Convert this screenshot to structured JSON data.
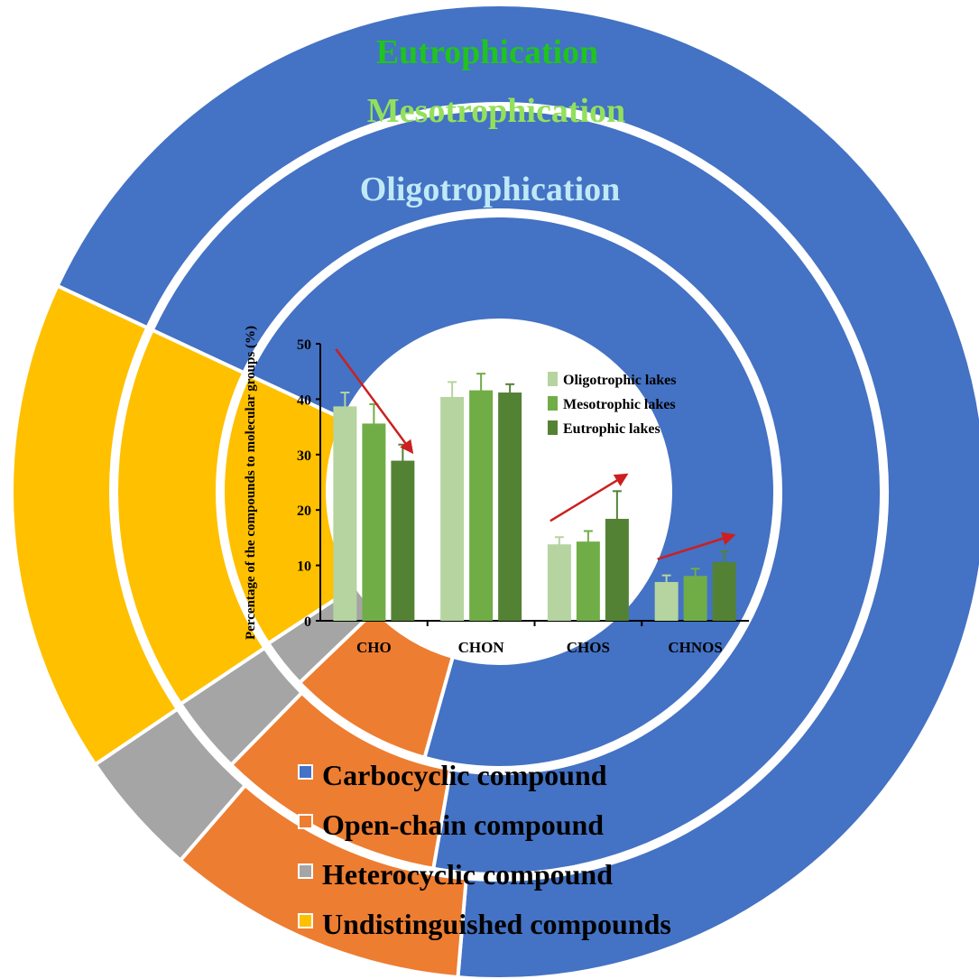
{
  "chart_data": [
    {
      "type": "pie",
      "subtype": "nested-donut",
      "colors": {
        "Carbocyclic compound": "#4472c4",
        "Open-chain compound": "#ed7d31",
        "Heterocyclic compound": "#a5a5a5",
        "Undistinguished compounds": "#ffc000"
      },
      "legend": [
        "Carbocyclic compound",
        "Open-chain compound",
        "Heterocyclic compound",
        "Undistinguished compounds"
      ],
      "legend_position": "bottom-center",
      "rings": [
        {
          "name": "Eutrophication",
          "title_color": "#1fc41f",
          "slices": [
            {
              "label": "Carbocyclic compound",
              "value": 69.4
            },
            {
              "label": "Open-chain compound",
              "value": 10.0
            },
            {
              "label": "Heterocyclic compound",
              "value": 4.2
            },
            {
              "label": "Undistinguished compounds",
              "value": 16.4
            }
          ]
        },
        {
          "name": "Mesotrophication",
          "title_color": "#92e05c",
          "slices": [
            {
              "label": "Carbocyclic compound",
              "value": 70.8
            },
            {
              "label": "Open-chain compound",
              "value": 9.6
            },
            {
              "label": "Heterocyclic compound",
              "value": 3.3
            },
            {
              "label": "Undistinguished compounds",
              "value": 16.3
            }
          ]
        },
        {
          "name": "Oligotrophication",
          "title_color": "#bfe9f7",
          "slices": [
            {
              "label": "Carbocyclic compound",
              "value": 72.4
            },
            {
              "label": "Open-chain compound",
              "value": 8.5
            },
            {
              "label": "Heterocyclic compound",
              "value": 2.9
            },
            {
              "label": "Undistinguished compounds",
              "value": 16.2
            }
          ]
        }
      ]
    },
    {
      "type": "bar",
      "categories": [
        "CHO",
        "CHON",
        "CHOS",
        "CHNOS"
      ],
      "ylabel": "Percentage of the compounds to molecular groups (%)",
      "ylim": [
        0,
        50
      ],
      "yticks": [
        0,
        10,
        20,
        30,
        40,
        50
      ],
      "legend_position": "top-right",
      "series": [
        {
          "name": "Oligotrophic lakes",
          "color": "#b5d4a0",
          "values": [
            38.7,
            40.4,
            13.8,
            7.0
          ],
          "errors": [
            2.5,
            2.7,
            1.3,
            1.2
          ]
        },
        {
          "name": "Mesotrophic lakes",
          "color": "#70ad47",
          "values": [
            35.6,
            41.6,
            14.3,
            8.1
          ],
          "errors": [
            3.5,
            3.0,
            1.9,
            1.3
          ]
        },
        {
          "name": "Eutrophic lakes",
          "color": "#548235",
          "values": [
            28.9,
            41.2,
            18.4,
            10.6
          ],
          "errors": [
            2.9,
            1.5,
            5.0,
            1.9
          ]
        }
      ],
      "trend_arrows": [
        {
          "category": "CHO",
          "direction": "decrease"
        },
        {
          "category": "CHOS",
          "direction": "increase"
        },
        {
          "category": "CHNOS",
          "direction": "increase"
        }
      ]
    }
  ]
}
